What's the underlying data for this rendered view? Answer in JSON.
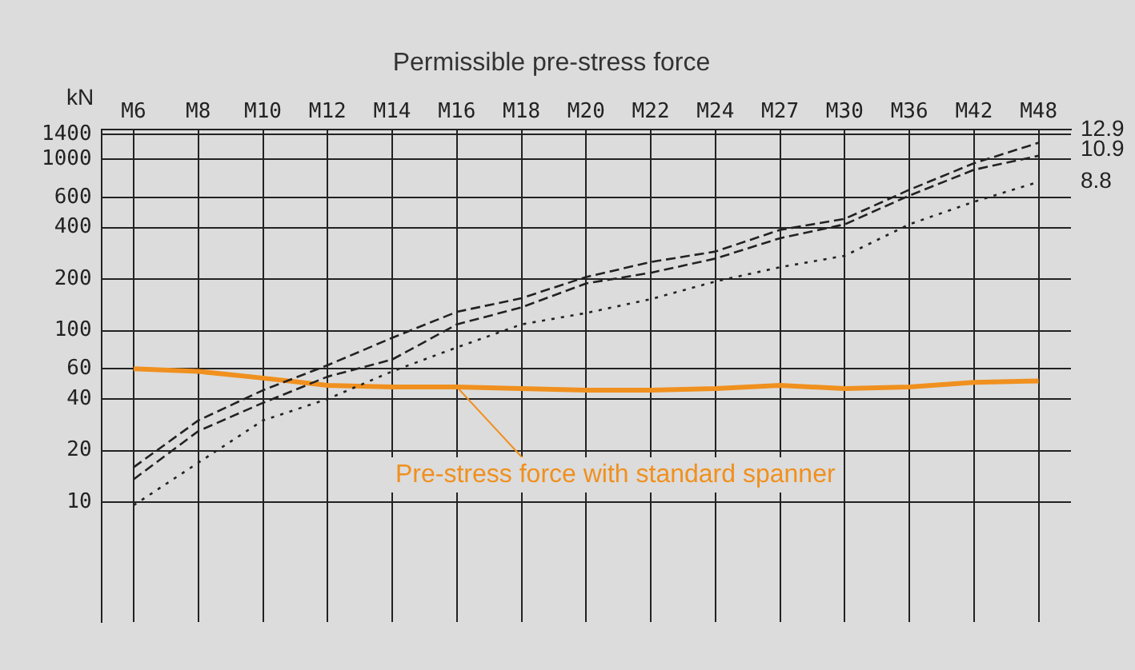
{
  "chart_data": {
    "type": "line",
    "title": "Permissible pre-stress force",
    "ylabel": "kN",
    "categories": [
      "M6",
      "M8",
      "M10",
      "M12",
      "M14",
      "M16",
      "M18",
      "M20",
      "M22",
      "M24",
      "M27",
      "M30",
      "M36",
      "M42",
      "M48"
    ],
    "series": [
      {
        "name": "12.9",
        "color": "#222222",
        "line_style": "dashed",
        "values": [
          16,
          30,
          45,
          63,
          91,
          129,
          155,
          206,
          252,
          290,
          388,
          450,
          665,
          950,
          1250
        ]
      },
      {
        "name": "10.9",
        "color": "#222222",
        "line_style": "dashed",
        "values": [
          13.6,
          26,
          38,
          54,
          68,
          109,
          137,
          189,
          218,
          264,
          347,
          418,
          615,
          870,
          1050
        ]
      },
      {
        "name": "8.8",
        "color": "#222222",
        "line_style": "dotted",
        "values": [
          9.6,
          17,
          30,
          40,
          58,
          80,
          109,
          127,
          153,
          194,
          235,
          274,
          418,
          566,
          740
        ]
      },
      {
        "name": "Pre-stress force with standard spanner",
        "color": "#f0901e",
        "line_style": "solid",
        "values": [
          60,
          58,
          53,
          48,
          47,
          47,
          46,
          45,
          45,
          46,
          48,
          46,
          47,
          50,
          51
        ]
      }
    ],
    "log": "y",
    "ylim": [
      2,
      1500
    ],
    "yticks": [
      10,
      20,
      40,
      60,
      100,
      200,
      400,
      600,
      1000,
      1400
    ],
    "grid": true,
    "legend": false,
    "marker": "none"
  }
}
